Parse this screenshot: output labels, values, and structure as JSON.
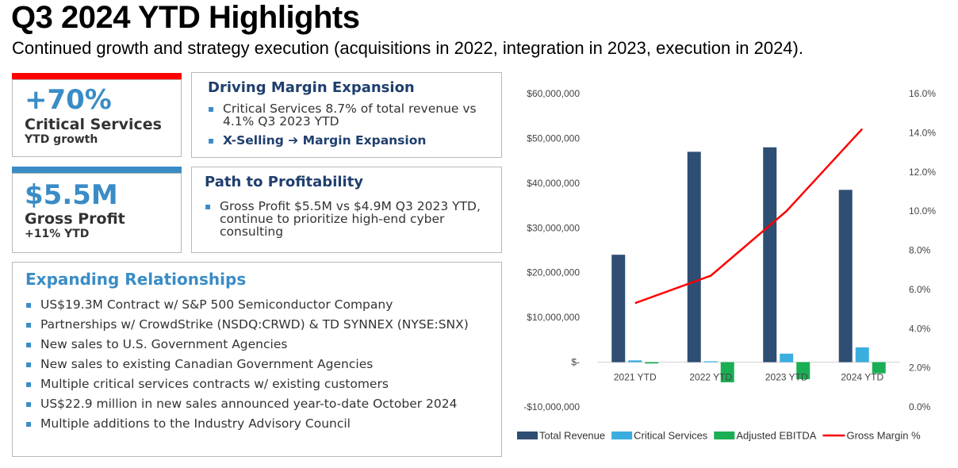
{
  "header": {
    "title": "Q3 2024 YTD Highlights",
    "subtitle": "Continued growth and strategy execution (acquisitions in 2022, integration in 2023, execution in 2024)."
  },
  "kpi1": {
    "value": "+70%",
    "label": "Critical Services",
    "sub": "YTD growth",
    "accent": "#ff0000"
  },
  "kpi2": {
    "value": "$5.5M",
    "label": "Gross Profit",
    "sub": "+11% YTD",
    "accent": "#3a8cc6"
  },
  "margin": {
    "title": "Driving Margin Expansion",
    "bullets": [
      "Critical Services 8.7% of total revenue vs 4.1% Q3 2023 YTD"
    ],
    "bold_bullet": "X-Selling ➔ Margin Expansion"
  },
  "profit": {
    "title": "Path to Profitability",
    "bullets": [
      "Gross Profit $5.5M vs $4.9M Q3 2023 YTD, continue to prioritize high-end cyber consulting"
    ]
  },
  "relationships": {
    "title": "Expanding Relationships",
    "bullets": [
      "US$19.3M Contract w/ S&P 500 Semiconductor Company",
      "Partnerships w/ CrowdStrike (NSDQ:CRWD) & TD SYNNEX (NYSE:SNX)",
      "New sales to U.S. Government Agencies",
      "New sales to existing Canadian Government Agencies",
      "Multiple critical services contracts w/ existing customers",
      "US$22.9 million in new sales announced year-to-date October 2024",
      "Multiple additions to the Industry Advisory Council"
    ]
  },
  "chart_data": {
    "type": "bar",
    "categories": [
      "2021 YTD",
      "2022 YTD",
      "2023 YTD",
      "2024 YTD"
    ],
    "series": [
      {
        "name": "Total Revenue",
        "kind": "bar",
        "axis": "left",
        "color": "#2e4e73",
        "values": [
          24000000,
          47000000,
          48000000,
          38500000
        ]
      },
      {
        "name": "Critical Services",
        "kind": "bar",
        "axis": "left",
        "color": "#3aaedf",
        "values": [
          400000,
          200000,
          1900000,
          3300000
        ]
      },
      {
        "name": "Adjusted EBITDA",
        "kind": "bar",
        "axis": "left",
        "color": "#1aaf54",
        "values": [
          -300000,
          -4500000,
          -3800000,
          -2500000
        ]
      },
      {
        "name": "Gross Margin %",
        "kind": "line",
        "axis": "right",
        "color": "#ff0000",
        "values": [
          5.3,
          6.7,
          10.0,
          14.2
        ]
      }
    ],
    "left_axis": {
      "min": -10000000,
      "max": 60000000,
      "step": 10000000,
      "tick_labels": [
        "-$10,000,000",
        "$-",
        "$10,000,000",
        "$20,000,000",
        "$30,000,000",
        "$40,000,000",
        "$50,000,000",
        "$60,000,000"
      ]
    },
    "right_axis": {
      "min": 0,
      "max": 16,
      "step": 2,
      "tick_labels": [
        "0.0%",
        "2.0%",
        "4.0%",
        "6.0%",
        "8.0%",
        "10.0%",
        "12.0%",
        "14.0%",
        "16.0%"
      ]
    },
    "legend_position": "bottom"
  }
}
